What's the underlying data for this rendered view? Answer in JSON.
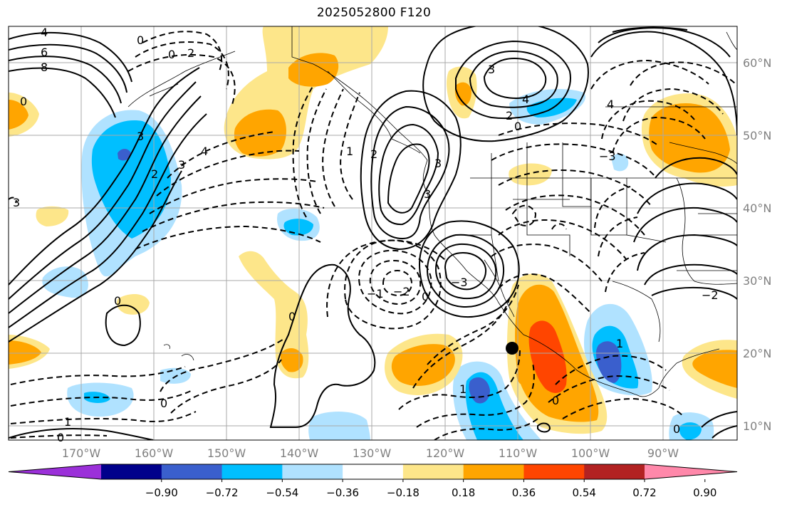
{
  "title": "2025052800 F120",
  "lat_labels": [
    "60°N",
    "50°N",
    "40°N",
    "30°N",
    "20°N",
    "10°N"
  ],
  "lon_labels": [
    "170°W",
    "160°W",
    "150°W",
    "140°W",
    "130°W",
    "120°W",
    "110°W",
    "100°W",
    "90°W"
  ],
  "colorbar": {
    "ticks": [
      "−0.90",
      "−0.72",
      "−0.54",
      "−0.36",
      "−0.18",
      "0.18",
      "0.36",
      "0.54",
      "0.72",
      "0.90"
    ],
    "colors": [
      "#9b30d9",
      "#00008b",
      "#3a5fcd",
      "#00bfff",
      "#b0e2ff",
      "#ffffff",
      "#fde68a",
      "#ffa500",
      "#ff4500",
      "#b22222",
      "#ff88aa"
    ]
  },
  "contour_labels": {
    "nw_4": "4",
    "nw_6": "6",
    "nw_8": "8",
    "nw_0": "0",
    "ak_3": "3",
    "ak_2": "2",
    "pac_2": "2",
    "pac_1": "1",
    "pac_3": "3",
    "pac_4": "4",
    "west_3": "3",
    "west_2": "2",
    "west_1": "1",
    "mid_neg1": "−1",
    "mid_neg2": "−2",
    "mid_0": "0",
    "cal_3": "3",
    "cal_neg3": "−3",
    "can_4": "4",
    "can_2": "2",
    "can_0": "0",
    "can_neg3": "−3",
    "east_4": "4",
    "east_neg2": "−2",
    "gulf_1": "1",
    "mex_0": "0",
    "sw_1": "1",
    "sw_0": "0",
    "sw_0b": "0",
    "hi_0": "0",
    "pac_0": "0",
    "ep_1": "1",
    "ep_0": "0",
    "far_3": "3",
    "far_0": "0"
  },
  "marker": "location-dot"
}
